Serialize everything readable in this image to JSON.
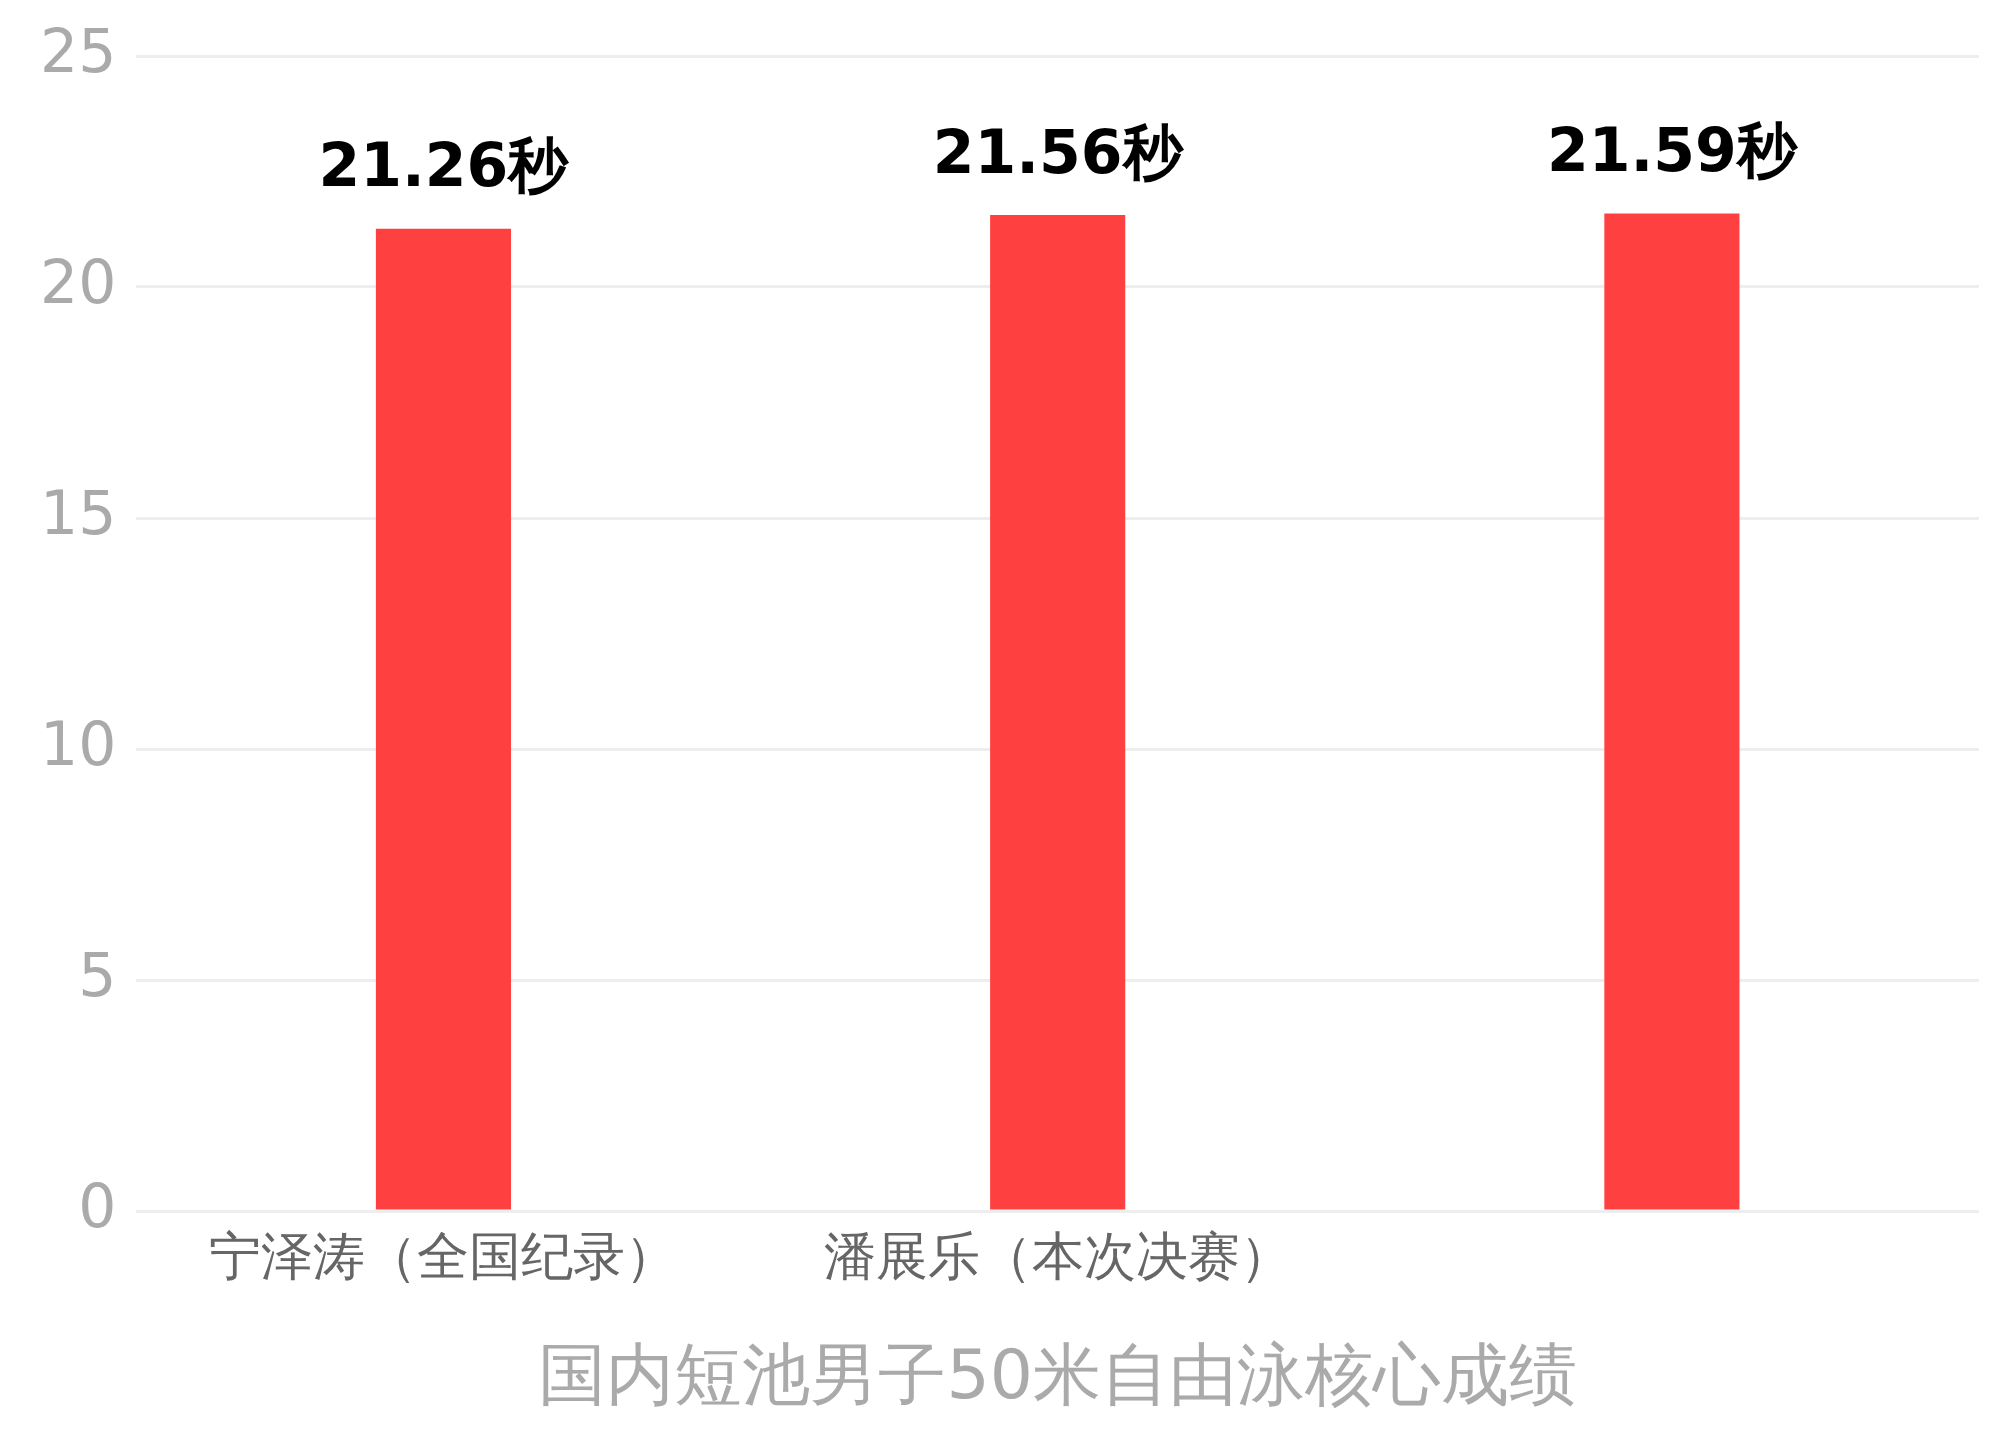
{
  "chart_data": {
    "type": "bar",
    "xlabel": "国内短池男子50米自由泳核心成绩",
    "categories": [
      "宁泽涛（全国纪录）",
      "潘展乐（本次决赛）",
      null
    ],
    "values": [
      21.26,
      21.56,
      21.59
    ],
    "value_labels": [
      "21.26秒",
      "21.56秒",
      "21.59秒"
    ],
    "color": "#ff4040",
    "ylim": [
      0,
      25
    ],
    "yticks": [
      0,
      5,
      10,
      15,
      20,
      25
    ],
    "grid": "y",
    "legend": false
  }
}
